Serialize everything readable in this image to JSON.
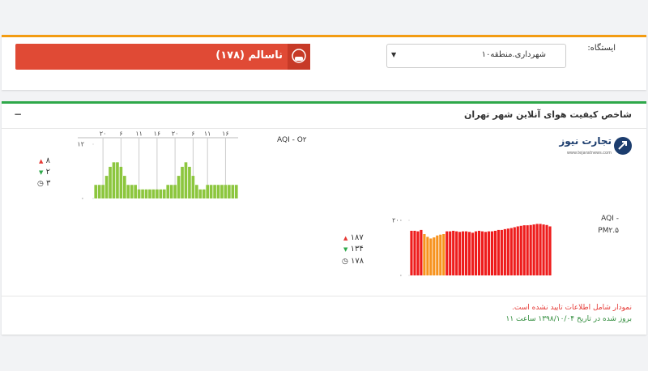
{
  "station": {
    "label": "ایستگاه:",
    "selected": "شهرداری.منطقه۱۰"
  },
  "status": {
    "text": "ناسالم (۱۷۸)"
  },
  "panel": {
    "title": "شاخص کیفیت هوای آنلاین شهر تهران",
    "collapse": "−"
  },
  "logo": {
    "name": "تجارت نیوز",
    "url": "www.tejaratnews.com"
  },
  "footer": {
    "warning": "نمودار شامل اطلاعات تایید نشده است.",
    "updated": "بروز شده در تاریخ ۱۳۹۸/۱۰/۰۴ ساعت ۱۱"
  },
  "chart_data": [
    {
      "type": "bar",
      "title": "AQI - O۲",
      "color": "#8cc63e",
      "ylim": [
        0,
        12
      ],
      "yticks": [
        {
          "value": 0,
          "label": "۰"
        },
        {
          "value": 12,
          "label": "۱۲"
        }
      ],
      "categories": [
        null,
        null,
        "۲۰",
        null,
        null,
        null,
        null,
        "۶",
        null,
        null,
        null,
        null,
        "۱۱",
        null,
        null,
        null,
        null,
        "۱۶",
        null,
        null,
        null,
        null,
        "۲۰",
        null,
        null,
        null,
        null,
        "۶",
        null,
        null,
        null,
        "۱۱",
        null,
        null,
        null,
        null,
        "۱۶",
        null,
        null,
        null
      ],
      "values": [
        3,
        3,
        3,
        5,
        7,
        8,
        8,
        7,
        5,
        3,
        3,
        3,
        2,
        2,
        2,
        2,
        2,
        2,
        2,
        2,
        3,
        3,
        3,
        5,
        7,
        8,
        7,
        5,
        3,
        2,
        2,
        3,
        3,
        3,
        3,
        3,
        3,
        3,
        3,
        3
      ],
      "stats": {
        "max": {
          "value": 8,
          "label": "۸"
        },
        "min": {
          "value": 2,
          "label": "۲"
        },
        "current": {
          "value": 3,
          "label": "۳"
        }
      }
    },
    {
      "type": "bar",
      "title": "AQI - PM۲.۵",
      "ylim": [
        0,
        200
      ],
      "yticks": [
        {
          "value": 0,
          "label": "۰"
        },
        {
          "value": 200,
          "label": "۲۰۰"
        }
      ],
      "values": [
        162,
        162,
        160,
        165,
        150,
        140,
        134,
        138,
        145,
        148,
        150,
        160,
        160,
        162,
        160,
        158,
        160,
        160,
        158,
        155,
        160,
        162,
        160,
        158,
        160,
        160,
        162,
        165,
        165,
        168,
        170,
        172,
        175,
        178,
        180,
        182,
        182,
        183,
        185,
        187,
        187,
        185,
        183,
        178
      ],
      "colors": [
        "#ee1c1c",
        "#ee1c1c",
        "#ee1c1c",
        "#ee1c1c",
        "#f7931e",
        "#f7931e",
        "#f7931e",
        "#f7931e",
        "#f7931e",
        "#f7931e",
        "#f7931e",
        "#ee1c1c",
        "#ee1c1c",
        "#ee1c1c",
        "#ee1c1c",
        "#ee1c1c",
        "#ee1c1c",
        "#ee1c1c",
        "#ee1c1c",
        "#ee1c1c",
        "#ee1c1c",
        "#ee1c1c",
        "#ee1c1c",
        "#ee1c1c",
        "#ee1c1c",
        "#ee1c1c",
        "#ee1c1c",
        "#ee1c1c",
        "#ee1c1c",
        "#ee1c1c",
        "#ee1c1c",
        "#ee1c1c",
        "#ee1c1c",
        "#ee1c1c",
        "#ee1c1c",
        "#ee1c1c",
        "#ee1c1c",
        "#ee1c1c",
        "#ee1c1c",
        "#ee1c1c",
        "#ee1c1c",
        "#ee1c1c",
        "#ee1c1c",
        "#ee1c1c"
      ],
      "stats": {
        "max": {
          "value": 187,
          "label": "۱۸۷"
        },
        "min": {
          "value": 134,
          "label": "۱۳۴"
        },
        "current": {
          "value": 178,
          "label": "۱۷۸"
        }
      }
    }
  ]
}
